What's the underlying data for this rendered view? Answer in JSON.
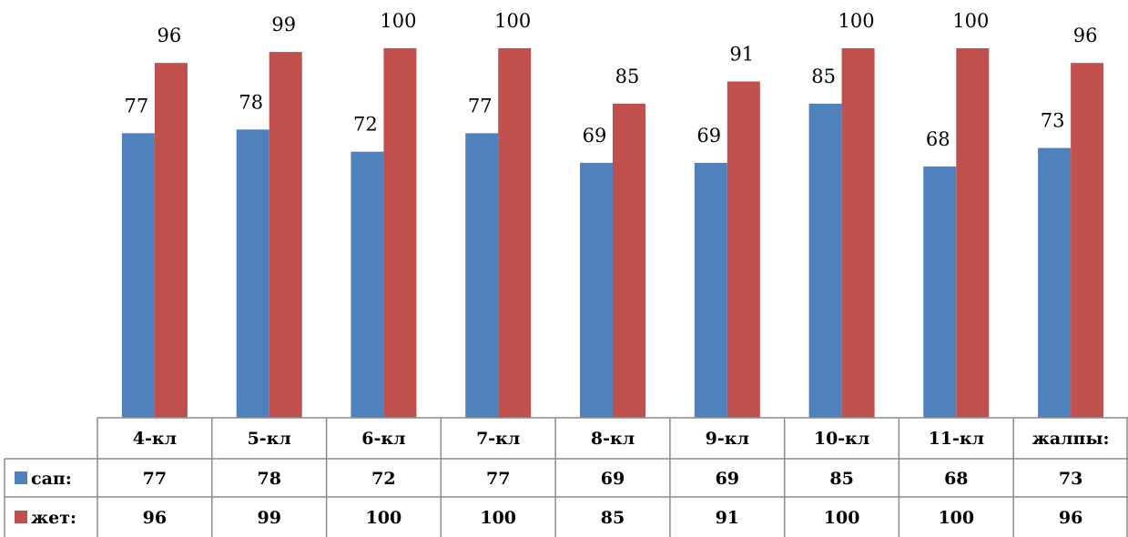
{
  "chart_data": {
    "type": "bar",
    "categories": [
      "4-кл",
      "5-кл",
      "6-кл",
      "7-кл",
      "8-кл",
      "9-кл",
      "10-кл",
      "11-кл",
      "жалпы:"
    ],
    "series": [
      {
        "name": "сап:",
        "values": [
          77,
          78,
          72,
          77,
          69,
          69,
          85,
          68,
          73
        ],
        "color": "#4F81BD"
      },
      {
        "name": "жет:",
        "values": [
          96,
          99,
          100,
          100,
          85,
          91,
          100,
          100,
          96
        ],
        "color": "#C0504D"
      }
    ],
    "ylim": [
      0,
      100
    ],
    "grid": false,
    "legend": "data-table",
    "data_labels": true
  }
}
